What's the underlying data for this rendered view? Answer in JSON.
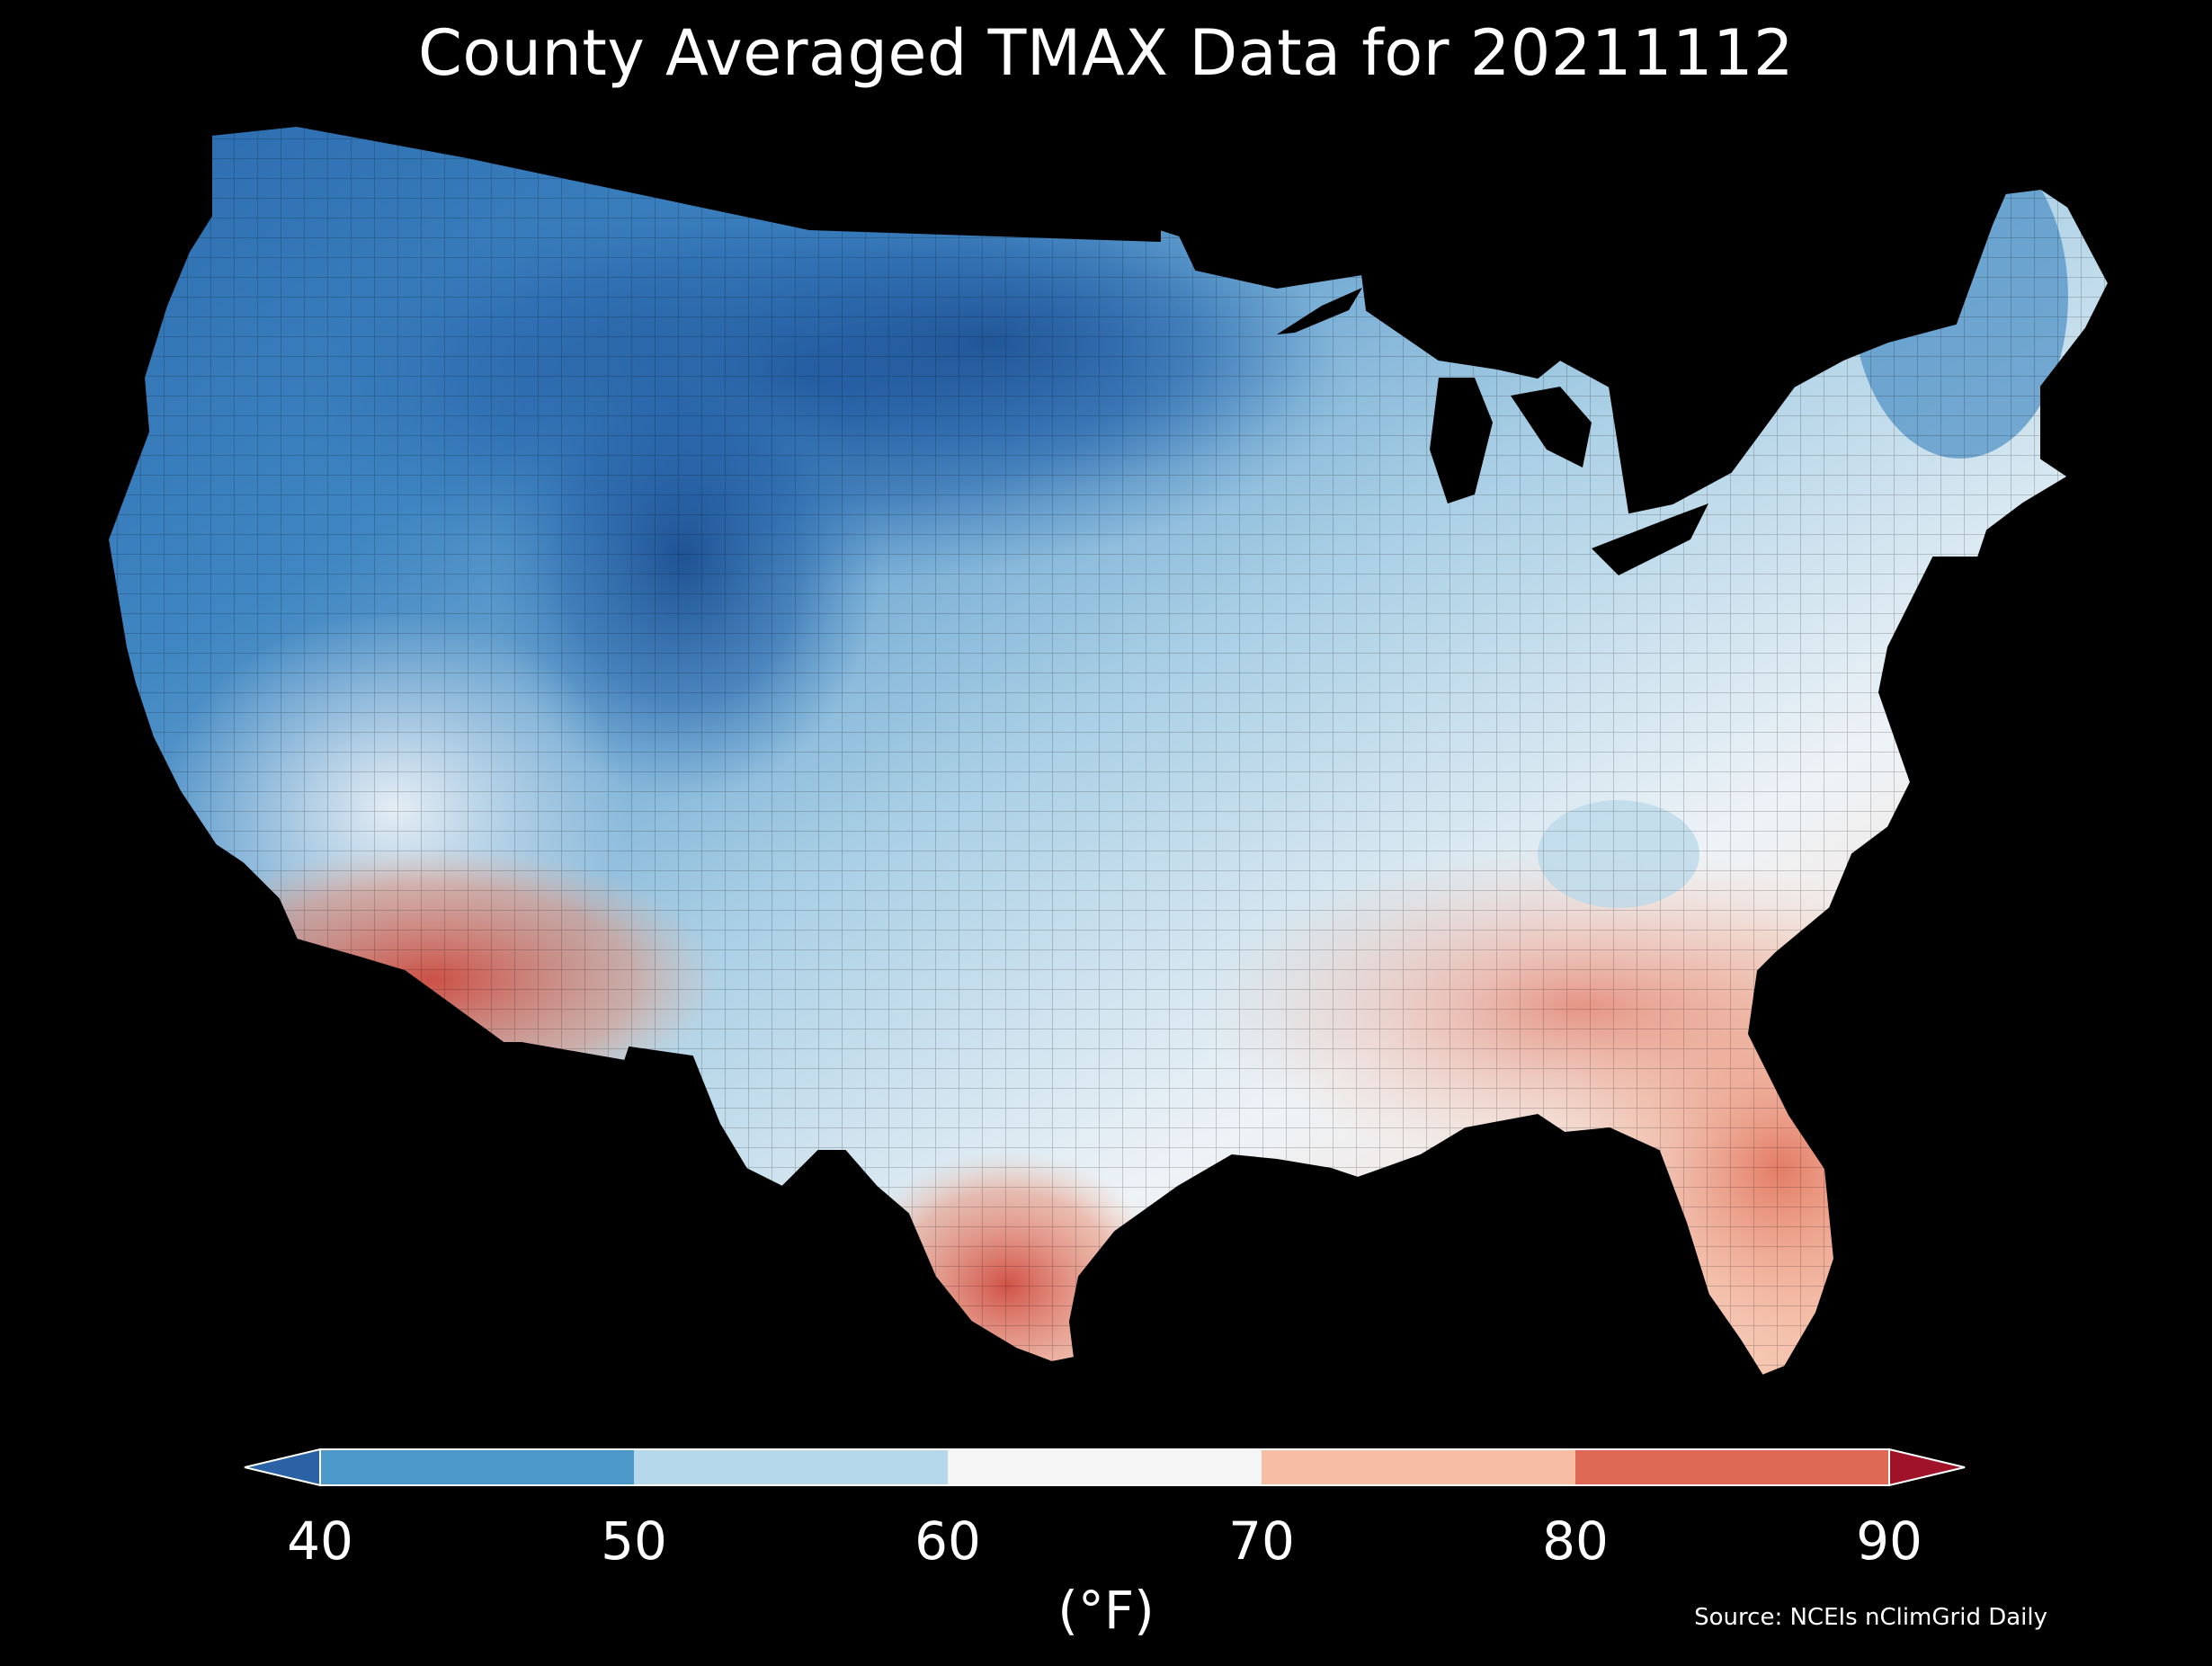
{
  "title": "County Averaged TMAX Data for 20211112",
  "colorbar": {
    "unit_label": "(°F)",
    "ticks": [
      "40",
      "50",
      "60",
      "70",
      "80",
      "90"
    ],
    "bins": [
      {
        "range": "<40",
        "color": "#2a62a5"
      },
      {
        "range": "40-50",
        "color": "#4b98c9"
      },
      {
        "range": "50-60",
        "color": "#b5d8ea"
      },
      {
        "range": "60-70",
        "color": "#f5f5f5"
      },
      {
        "range": "70-80",
        "color": "#f7bea3"
      },
      {
        "range": "80-90",
        "color": "#de6955"
      },
      {
        "range": ">90",
        "color": "#a01228"
      }
    ]
  },
  "source": "Source: NCEIs nClimGrid Daily",
  "regions": {
    "land": "Contiguous United States, county level",
    "coldest": "Northern Rockies and Northern Plains (near or below 40°F)",
    "warmest": "Southern Arizona, southern California, south Texas and Florida (80-90°F)",
    "water": "#000000"
  }
}
